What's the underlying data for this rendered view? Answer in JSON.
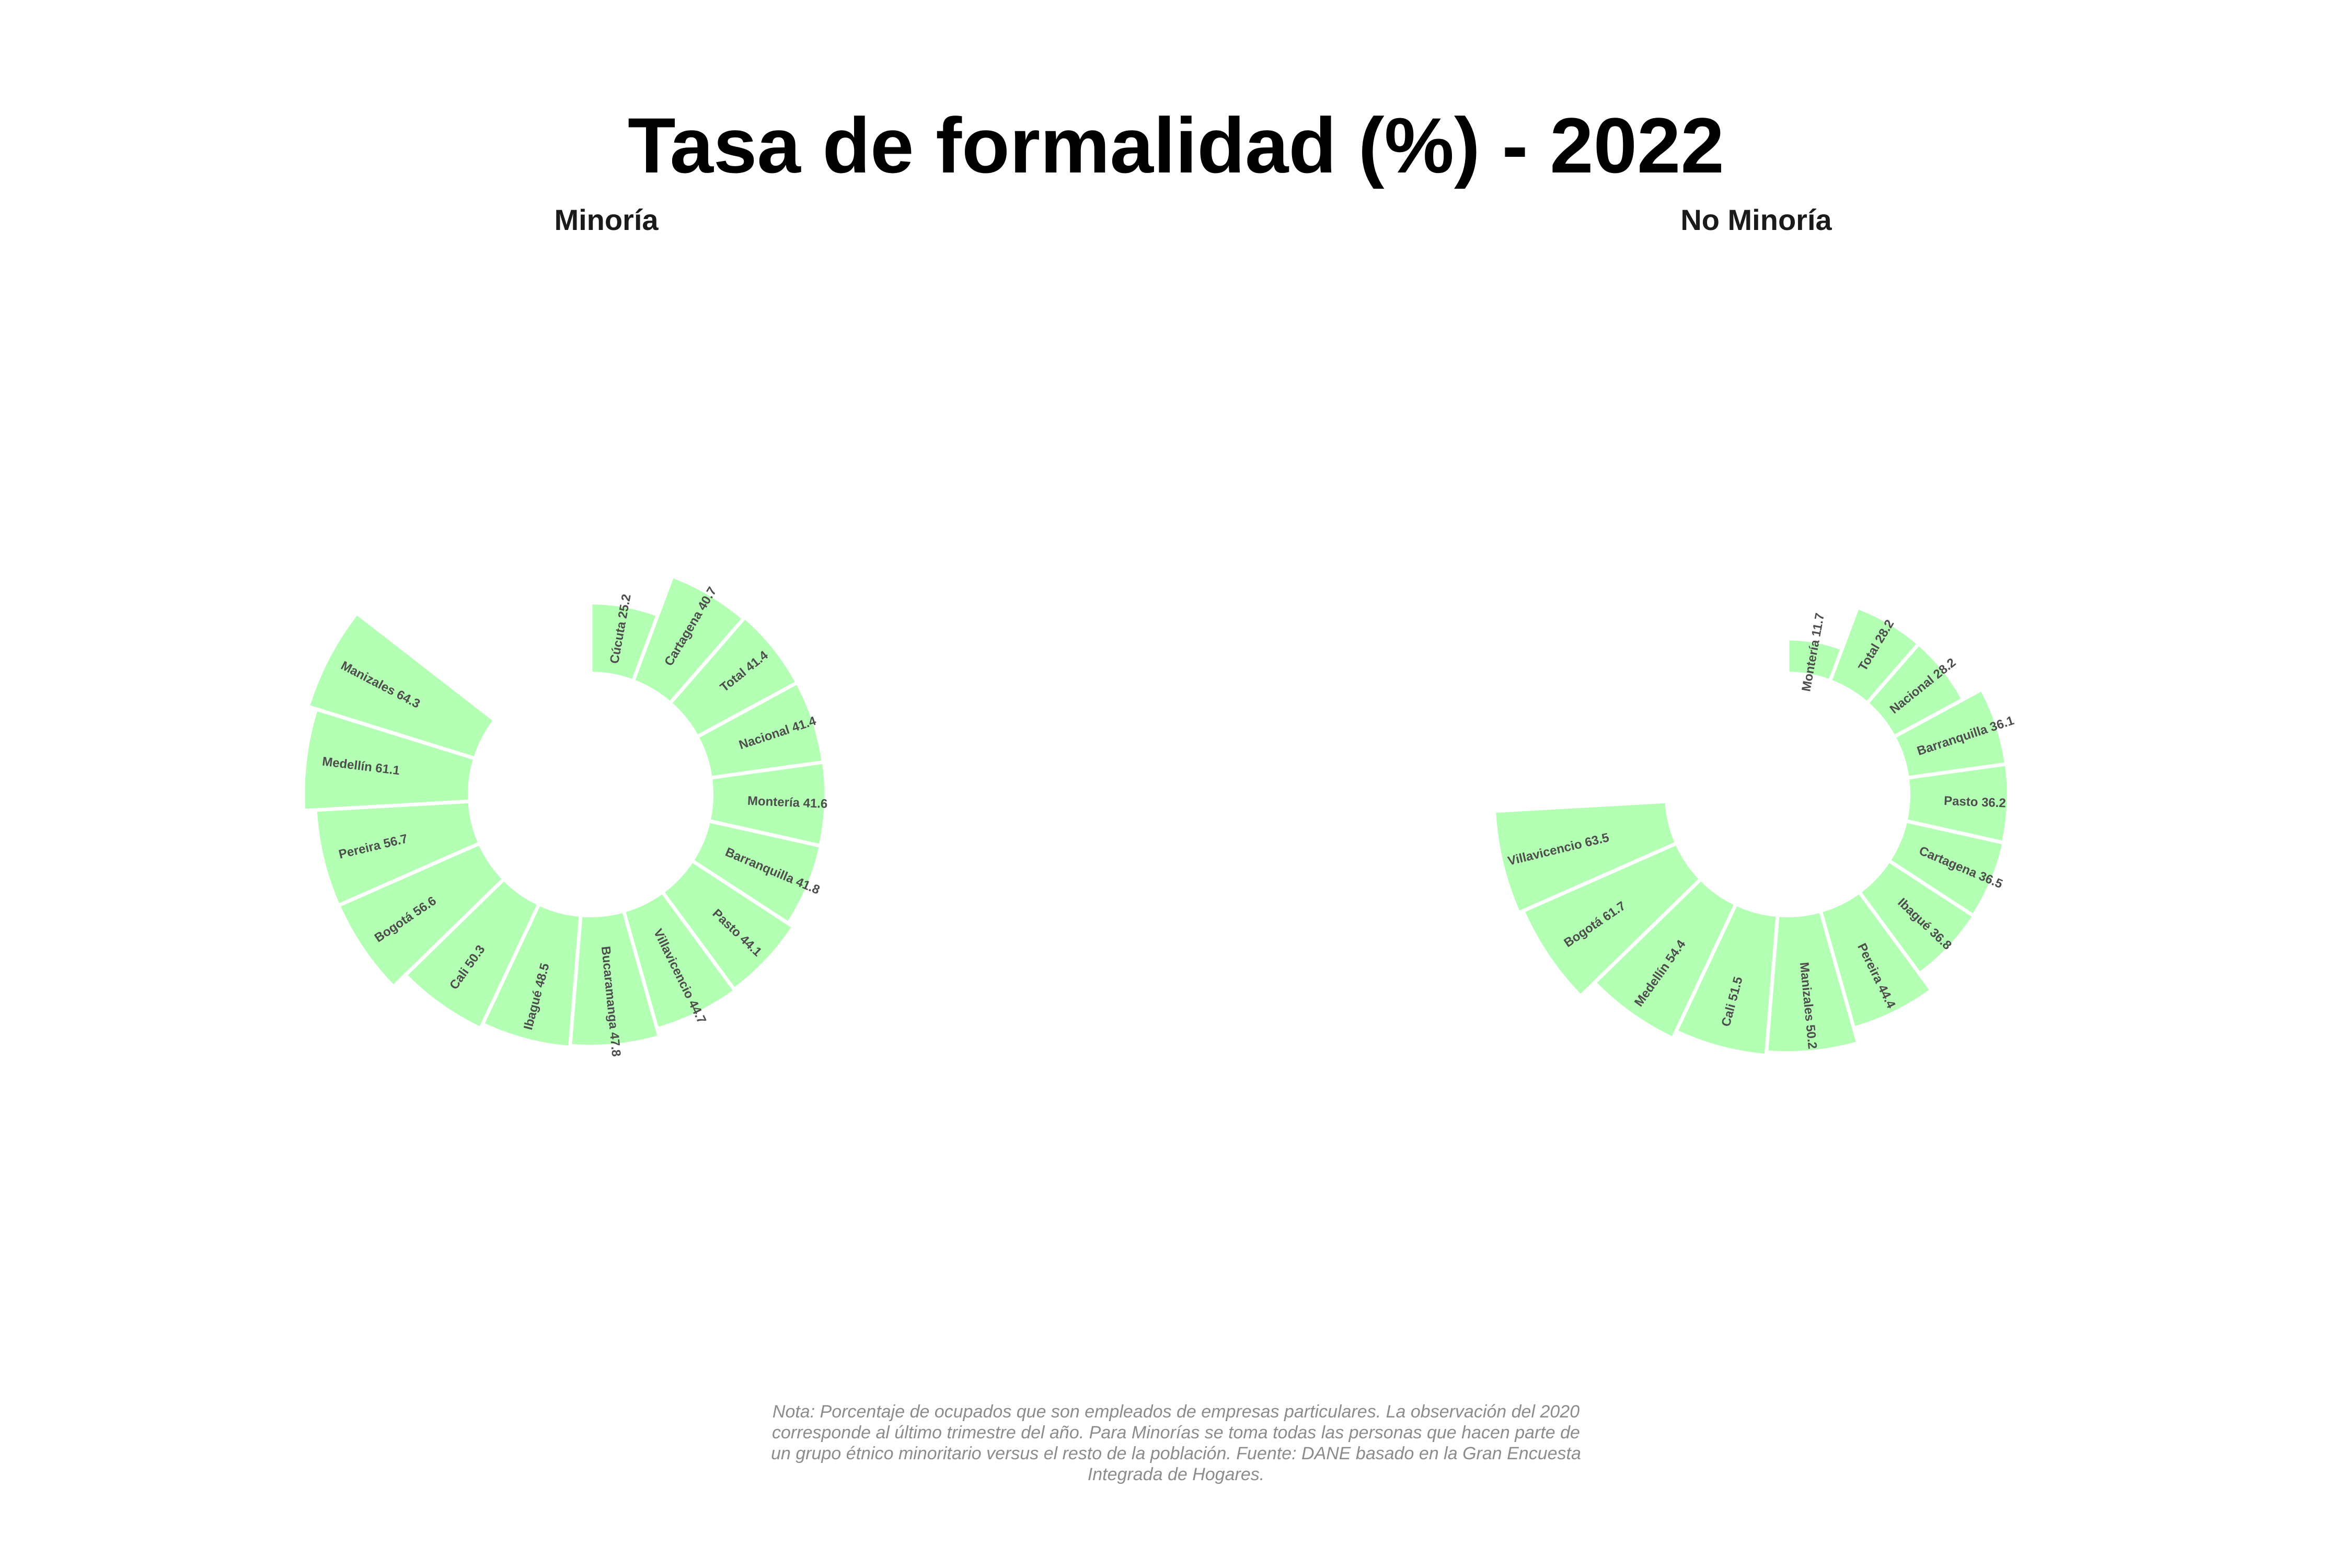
{
  "title": "Tasa de formalidad (%) - 2022",
  "note_lines": [
    "Nota: Porcentaje de ocupados que son empleados de empresas particulares. La observación del 2020",
    "corresponde al último trimestre del año. Para Minorías se toma todas las personas que hacen parte de",
    "un grupo étnico minoritario versus el resto de la población. Fuente: DANE basado en la Gran Encuesta",
    "Integrada de Hogares."
  ],
  "colors": {
    "segment": "#b3ffb3",
    "label": "#4d4d4d"
  },
  "chart_data": [
    {
      "type": "bar",
      "coord": "polar",
      "title": "Minoría",
      "categories": [
        "Cúcuta",
        "Cartagena",
        "Total",
        "Nacional",
        "Montería",
        "Barranquilla",
        "Pasto",
        "Villavicencio",
        "Bucaramanga",
        "Ibagué",
        "Cali",
        "Bogotá",
        "Pereira",
        "Medellín",
        "Manizales"
      ],
      "values": [
        25.2,
        40.7,
        41.4,
        41.4,
        41.6,
        41.8,
        44.1,
        44.7,
        47.8,
        48.5,
        50.3,
        56.6,
        56.7,
        61.1,
        64.3
      ],
      "labels": [
        "Cúcuta 25.2",
        "Cartagena 40.7",
        "Total 41.4",
        "Nacional 41.4",
        "Montería 41.6",
        "Barranquilla 41.8",
        "Pasto 44.1",
        "Villavicencio 44.7",
        "Bucaramanga 47.8",
        "Ibagué 48.5",
        "Cali 50.3",
        "Bogotá 56.6",
        "Pereira 56.7",
        "Medellín 61.1",
        "Manizales 64.3"
      ]
    },
    {
      "type": "bar",
      "coord": "polar",
      "title": "No Minoría",
      "categories": [
        "Montería",
        "Total",
        "Nacional",
        "Barranquilla",
        "Pasto",
        "Cartagena",
        "Ibagué",
        "Pereira",
        "Manizales",
        "Cali",
        "Medellín",
        "Bogotá",
        "Villavicencio"
      ],
      "values": [
        11.7,
        28.2,
        28.2,
        36.1,
        36.2,
        36.5,
        36.8,
        44.4,
        50.2,
        51.5,
        54.4,
        61.7,
        63.5
      ],
      "labels": [
        "Montería 11.7",
        "Total 28.2",
        "Nacional 28.2",
        "Barranquilla 36.1",
        "Pasto 36.2",
        "Cartagena 36.5",
        "Ibagué 36.8",
        "Pereira 44.4",
        "Manizales 50.2",
        "Cali 51.5",
        "Medellín 54.4",
        "Bogotá 61.7",
        "Villavicencio 63.5"
      ]
    }
  ]
}
